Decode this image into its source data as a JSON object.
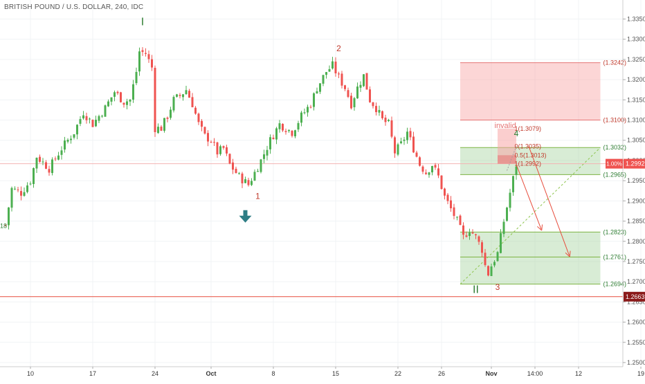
{
  "chart_data": {
    "type": "candlestick",
    "title": "BRITISH POUND / U.S. DOLLAR, 240, IDC",
    "y_axis": {
      "min": 1.25,
      "max": 1.3375,
      "ticks": [
        "1.3350",
        "1.3300",
        "1.3250",
        "1.3200",
        "1.3150",
        "1.3100",
        "1.3050",
        "1.3000",
        "1.2950",
        "1.2900",
        "1.2850",
        "1.2800",
        "1.2750",
        "1.2700",
        "1.2650",
        "1.2600",
        "1.2550",
        "1.2500"
      ]
    },
    "x_axis": {
      "labels": [
        {
          "text": "10",
          "bar": 8,
          "bold": false
        },
        {
          "text": "17",
          "bar": 28,
          "bold": false
        },
        {
          "text": "24",
          "bar": 48,
          "bold": false
        },
        {
          "text": "Oct",
          "bar": 66,
          "bold": true
        },
        {
          "text": "8",
          "bar": 86,
          "bold": false
        },
        {
          "text": "15",
          "bar": 106,
          "bold": false
        },
        {
          "text": "22",
          "bar": 126,
          "bold": false
        },
        {
          "text": "26",
          "bar": 140,
          "bold": false
        },
        {
          "text": "Nov",
          "bar": 156,
          "bold": true
        },
        {
          "text": "14:00",
          "bar": 170,
          "bold": false
        },
        {
          "text": "12",
          "bar": 184,
          "bold": false
        },
        {
          "text": "19",
          "bar": 204,
          "bold": false
        }
      ]
    },
    "price_path": [
      [
        0,
        1.284
      ],
      [
        2,
        1.293
      ],
      [
        5,
        1.292
      ],
      [
        8,
        1.295
      ],
      [
        10,
        1.301
      ],
      [
        14,
        1.298
      ],
      [
        18,
        1.303
      ],
      [
        22,
        1.307
      ],
      [
        25,
        1.312
      ],
      [
        28,
        1.309
      ],
      [
        32,
        1.313
      ],
      [
        35,
        1.317
      ],
      [
        38,
        1.3145
      ],
      [
        40,
        1.315
      ],
      [
        42,
        1.322
      ],
      [
        43,
        1.327
      ],
      [
        45,
        1.3265
      ],
      [
        47,
        1.323
      ],
      [
        48,
        1.308
      ],
      [
        50,
        1.308
      ],
      [
        52,
        1.311
      ],
      [
        54,
        1.315
      ],
      [
        56,
        1.316
      ],
      [
        58,
        1.3175
      ],
      [
        60,
        1.314
      ],
      [
        62,
        1.309
      ],
      [
        64,
        1.306
      ],
      [
        66,
        1.305
      ],
      [
        68,
        1.302
      ],
      [
        70,
        1.303
      ],
      [
        72,
        1.299
      ],
      [
        75,
        1.296
      ],
      [
        78,
        1.294
      ],
      [
        80,
        1.297
      ],
      [
        82,
        1.3
      ],
      [
        85,
        1.305
      ],
      [
        88,
        1.309
      ],
      [
        92,
        1.307
      ],
      [
        95,
        1.311
      ],
      [
        98,
        1.314
      ],
      [
        100,
        1.318
      ],
      [
        103,
        1.322
      ],
      [
        105,
        1.3235
      ],
      [
        107,
        1.3205
      ],
      [
        109,
        1.318
      ],
      [
        111,
        1.314
      ],
      [
        113,
        1.318
      ],
      [
        115,
        1.321
      ],
      [
        117,
        1.315
      ],
      [
        119,
        1.313
      ],
      [
        121,
        1.31
      ],
      [
        123,
        1.309
      ],
      [
        125,
        1.302
      ],
      [
        127,
        1.304
      ],
      [
        129,
        1.307
      ],
      [
        131,
        1.303
      ],
      [
        133,
        1.299
      ],
      [
        135,
        1.297
      ],
      [
        137,
        1.299
      ],
      [
        139,
        1.296
      ],
      [
        141,
        1.291
      ],
      [
        143,
        1.288
      ],
      [
        145,
        1.285
      ],
      [
        147,
        1.281
      ],
      [
        149,
        1.283
      ],
      [
        151,
        1.281
      ],
      [
        153,
        1.278
      ],
      [
        154,
        1.274
      ],
      [
        155,
        1.272
      ],
      [
        156,
        1.274
      ],
      [
        158,
        1.277
      ],
      [
        160,
        1.285
      ],
      [
        162,
        1.292
      ],
      [
        164,
        1.299
      ]
    ],
    "wave_labels": [
      {
        "text": "I",
        "bar": 44,
        "price": 1.3335,
        "color": "#2e7d32"
      },
      {
        "text": "1",
        "bar": 81,
        "price": 1.2905,
        "color": "#c0392b"
      },
      {
        "text": "2",
        "bar": 107,
        "price": 1.327,
        "color": "#c0392b"
      },
      {
        "text": "3",
        "bar": 158,
        "price": 1.268,
        "color": "#c0392b"
      },
      {
        "text": "II",
        "bar": 151,
        "price": 1.2672,
        "color": "#2e7d32"
      },
      {
        "text": "4",
        "bar": 164,
        "price": 1.306,
        "color": "#2e7d32"
      }
    ],
    "left_marker": "18",
    "annotation_invalid": "invalid",
    "fib_labels": [
      "1(1.3079)",
      "0(1.3035)",
      "0.5(1.3013)",
      "1(1.2992)"
    ],
    "fib_values": [
      1.3079,
      1.3035,
      1.3013,
      1.2992
    ],
    "zones": [
      {
        "name": "red-zone",
        "top": 1.3242,
        "bottom": 1.31,
        "bar_start": 146,
        "bar_end": 191,
        "fill": "#f8a5a5"
      },
      {
        "name": "green-zone-top",
        "top": 1.3032,
        "bottom": 1.2965,
        "bar_start": 146,
        "bar_end": 191,
        "fill": "#a8d5a2"
      },
      {
        "name": "green-zone-bottom",
        "top": 1.2823,
        "bottom": 1.2694,
        "bar_start": 146,
        "bar_end": 191,
        "fill": "#a8d5a2"
      }
    ],
    "level_labels": [
      {
        "text": "(1.3242)",
        "value": 1.3242,
        "color": "#c0392b"
      },
      {
        "text": "(1.3100)",
        "value": 1.31,
        "color": "#c0392b"
      },
      {
        "text": "(1.3032)",
        "value": 1.3032,
        "color": "#2e7d32"
      },
      {
        "text": "(1.2965)",
        "value": 1.2965,
        "color": "#2e7d32"
      },
      {
        "text": "(1.2823)",
        "value": 1.2823,
        "color": "#2e7d32"
      },
      {
        "text": "(1.2761)",
        "value": 1.2761,
        "color": "#2e7d32"
      },
      {
        "text": "(1.2694)",
        "value": 1.2694,
        "color": "#2e7d32"
      }
    ],
    "current_price": {
      "label": "1.2992",
      "value": 1.2992,
      "badge": "1.00%"
    },
    "support_line": {
      "label": "1.2663",
      "value": 1.2663
    },
    "colors": {
      "up": "#26a69a",
      "up_fill": "#4caf50",
      "down": "#ef5350",
      "grid": "#f0f3f5",
      "axis_text": "#555555"
    }
  }
}
